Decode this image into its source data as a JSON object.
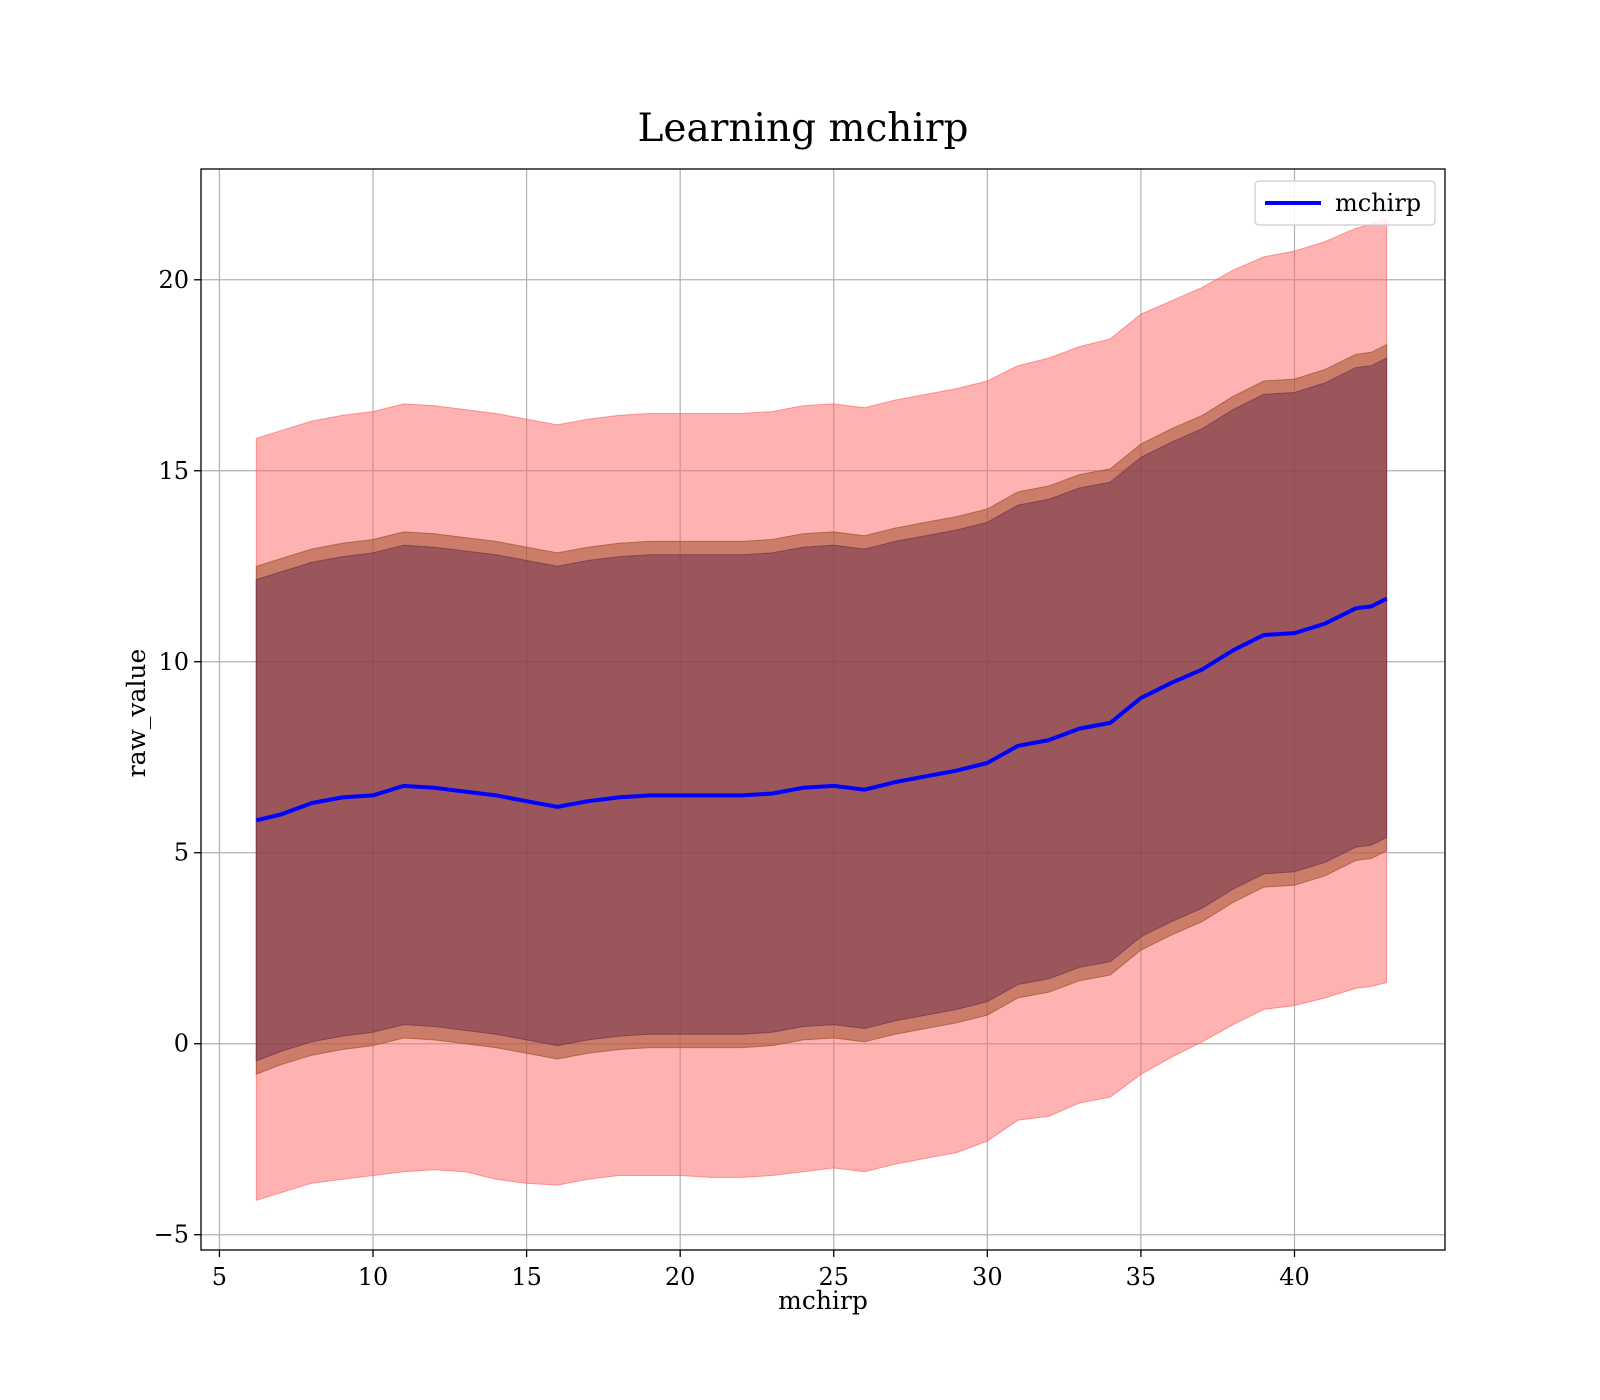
{
  "chart_data": {
    "type": "line",
    "title": "Learning mchirp",
    "xlabel": "mchirp",
    "ylabel": "raw_value",
    "xlim": [
      4.4,
      44.9
    ],
    "ylim": [
      -5.4,
      22.9
    ],
    "xticks": [
      5,
      10,
      15,
      20,
      25,
      30,
      35,
      40
    ],
    "yticks": [
      -5,
      0,
      5,
      10,
      15,
      20
    ],
    "xtick_labels": [
      "5",
      "10",
      "15",
      "20",
      "25",
      "30",
      "35",
      "40"
    ],
    "ytick_labels": [
      "−5",
      "0",
      "5",
      "10",
      "15",
      "20"
    ],
    "grid": true,
    "legend_position": "top-right",
    "legend": [
      {
        "label": "mchirp",
        "color": "#0000ff"
      }
    ],
    "colors": {
      "line": "#0000ff",
      "outer_band": "#ff6666",
      "outer_band_opacity": 0.5,
      "middle_band": "#a0522d",
      "middle_band_opacity": 0.55,
      "inner_band": "#6b3050",
      "inner_band_opacity": 0.5,
      "grid": "#b0b0b0"
    },
    "x": [
      6.2,
      7,
      8,
      9,
      10,
      11,
      12,
      13,
      14,
      15,
      16,
      17,
      18,
      19,
      20,
      21,
      22,
      23,
      24,
      25,
      26,
      27,
      28,
      29,
      30,
      31,
      32,
      33,
      34,
      35,
      36,
      37,
      38,
      39,
      40,
      41,
      42,
      42.5,
      43
    ],
    "series": [
      {
        "name": "mchirp",
        "values": [
          5.85,
          6.0,
          6.3,
          6.45,
          6.5,
          6.75,
          6.7,
          6.6,
          6.5,
          6.35,
          6.2,
          6.35,
          6.45,
          6.5,
          6.5,
          6.5,
          6.5,
          6.55,
          6.7,
          6.75,
          6.65,
          6.85,
          7.0,
          7.15,
          7.35,
          7.8,
          7.95,
          8.25,
          8.4,
          9.05,
          9.45,
          9.8,
          10.3,
          10.7,
          10.75,
          11.0,
          11.4,
          11.45,
          11.65
        ]
      }
    ],
    "bands": [
      {
        "level": "outer",
        "lower": [
          -4.1,
          -3.9,
          -3.65,
          -3.55,
          -3.45,
          -3.35,
          -3.3,
          -3.35,
          -3.55,
          -3.65,
          -3.7,
          -3.55,
          -3.45,
          -3.45,
          -3.45,
          -3.5,
          -3.5,
          -3.45,
          -3.35,
          -3.25,
          -3.35,
          -3.15,
          -3.0,
          -2.85,
          -2.55,
          -2.0,
          -1.9,
          -1.55,
          -1.4,
          -0.8,
          -0.35,
          0.05,
          0.5,
          0.9,
          1.0,
          1.2,
          1.45,
          1.5,
          1.6
        ],
        "upper": [
          15.85,
          16.05,
          16.3,
          16.45,
          16.55,
          16.75,
          16.7,
          16.6,
          16.5,
          16.35,
          16.2,
          16.35,
          16.45,
          16.5,
          16.5,
          16.5,
          16.5,
          16.55,
          16.7,
          16.75,
          16.65,
          16.85,
          17.0,
          17.15,
          17.35,
          17.75,
          17.95,
          18.25,
          18.45,
          19.1,
          19.45,
          19.8,
          20.25,
          20.6,
          20.75,
          21.0,
          21.35,
          21.45,
          21.6
        ]
      },
      {
        "level": "middle",
        "lower": [
          -0.8,
          -0.55,
          -0.3,
          -0.15,
          -0.05,
          0.15,
          0.1,
          0.0,
          -0.1,
          -0.25,
          -0.4,
          -0.25,
          -0.15,
          -0.1,
          -0.1,
          -0.1,
          -0.1,
          -0.05,
          0.1,
          0.15,
          0.05,
          0.25,
          0.4,
          0.55,
          0.75,
          1.2,
          1.35,
          1.65,
          1.8,
          2.45,
          2.85,
          3.2,
          3.7,
          4.1,
          4.15,
          4.4,
          4.8,
          4.85,
          5.05
        ],
        "upper": [
          12.5,
          12.7,
          12.95,
          13.1,
          13.2,
          13.4,
          13.35,
          13.25,
          13.15,
          13.0,
          12.85,
          13.0,
          13.1,
          13.15,
          13.15,
          13.15,
          13.15,
          13.2,
          13.35,
          13.4,
          13.3,
          13.5,
          13.65,
          13.8,
          14.0,
          14.45,
          14.6,
          14.9,
          15.05,
          15.7,
          16.1,
          16.45,
          16.95,
          17.35,
          17.4,
          17.65,
          18.05,
          18.1,
          18.3
        ]
      },
      {
        "level": "inner",
        "lower": [
          -0.45,
          -0.2,
          0.05,
          0.2,
          0.3,
          0.5,
          0.45,
          0.35,
          0.25,
          0.1,
          -0.05,
          0.1,
          0.2,
          0.25,
          0.25,
          0.25,
          0.25,
          0.3,
          0.45,
          0.5,
          0.4,
          0.6,
          0.75,
          0.9,
          1.1,
          1.55,
          1.7,
          2.0,
          2.15,
          2.8,
          3.2,
          3.55,
          4.05,
          4.45,
          4.5,
          4.75,
          5.15,
          5.2,
          5.4
        ],
        "upper": [
          12.15,
          12.35,
          12.6,
          12.75,
          12.85,
          13.05,
          13.0,
          12.9,
          12.8,
          12.65,
          12.5,
          12.65,
          12.75,
          12.8,
          12.8,
          12.8,
          12.8,
          12.85,
          13.0,
          13.05,
          12.95,
          13.15,
          13.3,
          13.45,
          13.65,
          14.1,
          14.25,
          14.55,
          14.7,
          15.35,
          15.75,
          16.1,
          16.6,
          17.0,
          17.05,
          17.3,
          17.7,
          17.75,
          17.95
        ]
      }
    ]
  }
}
